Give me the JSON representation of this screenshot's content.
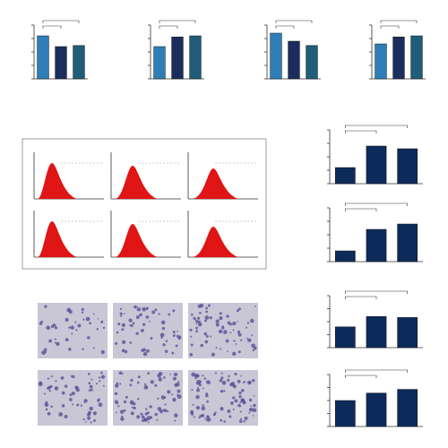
{
  "chart_data": [
    {
      "type": "bar",
      "categories": [
        null,
        null,
        null
      ],
      "values": [
        0.8,
        0.6,
        0.62
      ],
      "colors": [
        "#2e7fb8",
        "#1b2d5c",
        "#1f5d78"
      ],
      "ylim": [
        0,
        1
      ],
      "yticks": [
        0,
        0.25,
        0.5,
        0.75,
        1
      ]
    },
    {
      "type": "bar",
      "categories": [
        null,
        null,
        null
      ],
      "values": [
        0.6,
        0.78,
        0.8
      ],
      "colors": [
        "#2e7fb8",
        "#1b2d5c",
        "#1f5d78"
      ],
      "ylim": [
        0,
        1
      ],
      "yticks": [
        0,
        0.25,
        0.5,
        0.75,
        1
      ]
    },
    {
      "type": "bar",
      "categories": [
        null,
        null,
        null
      ],
      "values": [
        0.85,
        0.7,
        0.62
      ],
      "colors": [
        "#2e7fb8",
        "#1b2d5c",
        "#1f5d78"
      ],
      "ylim": [
        0,
        1
      ],
      "yticks": [
        0,
        0.25,
        0.5,
        0.75,
        1
      ]
    },
    {
      "type": "bar",
      "categories": [
        null,
        null,
        null
      ],
      "values": [
        0.65,
        0.78,
        0.8
      ],
      "colors": [
        "#2e7fb8",
        "#1b2d5c",
        "#1f5d78"
      ],
      "ylim": [
        0,
        1
      ],
      "yticks": [
        0,
        0.25,
        0.5,
        0.75,
        1
      ]
    },
    {
      "type": "bar",
      "categories": [
        null,
        null,
        null
      ],
      "values": [
        3,
        7,
        6.5
      ],
      "colors": [
        "#0d2b5a",
        "#0d2b5a",
        "#0d2b5a"
      ],
      "ylim": [
        0,
        10
      ],
      "yticks": [
        0,
        2.5,
        5,
        7.5,
        10
      ]
    },
    {
      "type": "bar",
      "categories": [
        null,
        null,
        null
      ],
      "values": [
        2,
        6,
        7
      ],
      "colors": [
        "#0d2b5a",
        "#0d2b5a",
        "#0d2b5a"
      ],
      "ylim": [
        0,
        10
      ],
      "yticks": [
        0,
        2.5,
        5,
        7.5,
        10
      ]
    },
    {
      "type": "bar",
      "categories": [
        null,
        null,
        null
      ],
      "values": [
        4,
        6,
        5.8
      ],
      "colors": [
        "#0d2b5a",
        "#0d2b5a",
        "#0d2b5a"
      ],
      "ylim": [
        0,
        10
      ],
      "yticks": [
        0,
        2.5,
        5,
        7.5,
        10
      ]
    },
    {
      "type": "bar",
      "categories": [
        null,
        null,
        null
      ],
      "values": [
        3.5,
        4.5,
        5
      ],
      "colors": [
        "#0d2b5a",
        "#0d2b5a",
        "#0d2b5a"
      ],
      "ylim": [
        0,
        7
      ],
      "yticks": [
        0,
        1.75,
        3.5,
        5.25,
        7
      ]
    }
  ]
}
